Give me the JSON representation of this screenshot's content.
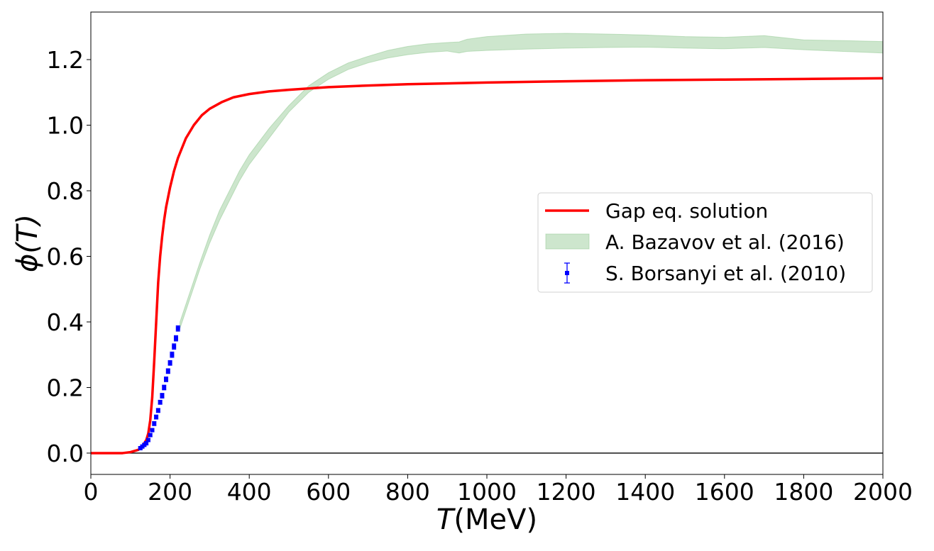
{
  "chart_data": {
    "type": "line",
    "xlabel": "T(MeV)",
    "xlabel_italic_part": "T",
    "xlabel_unit_part": "(MeV)",
    "ylabel": "ϕ(T)",
    "xlim": [
      0,
      2000
    ],
    "ylim": [
      -0.065,
      1.345
    ],
    "x_ticks": [
      0,
      200,
      400,
      600,
      800,
      1000,
      1200,
      1400,
      1600,
      1800,
      2000
    ],
    "x_tick_labels": [
      "0",
      "200",
      "400",
      "600",
      "800",
      "1000",
      "1200",
      "1400",
      "1600",
      "1800",
      "2000"
    ],
    "y_ticks": [
      0.0,
      0.2,
      0.4,
      0.6,
      0.8,
      1.0,
      1.2
    ],
    "y_tick_labels": [
      "0.0",
      "0.2",
      "0.4",
      "0.6",
      "0.8",
      "1.0",
      "1.2"
    ],
    "grid": false,
    "zero_line": 0,
    "legend_position": "center-right",
    "series": [
      {
        "name": "Gap eq. solution",
        "kind": "line",
        "color": "#ff0000",
        "x": [
          0,
          80,
          100,
          120,
          130,
          140,
          145,
          150,
          155,
          160,
          165,
          170,
          175,
          180,
          185,
          190,
          200,
          210,
          220,
          230,
          240,
          260,
          280,
          300,
          330,
          360,
          400,
          450,
          500,
          600,
          700,
          800,
          1000,
          1200,
          1400,
          1600,
          1800,
          2000
        ],
        "y": [
          0.0,
          0.0,
          0.003,
          0.01,
          0.02,
          0.04,
          0.06,
          0.1,
          0.17,
          0.28,
          0.4,
          0.52,
          0.6,
          0.66,
          0.71,
          0.75,
          0.81,
          0.86,
          0.9,
          0.93,
          0.96,
          1.0,
          1.03,
          1.05,
          1.07,
          1.085,
          1.095,
          1.103,
          1.108,
          1.116,
          1.121,
          1.125,
          1.13,
          1.134,
          1.137,
          1.139,
          1.141,
          1.143
        ]
      },
      {
        "name": "A. Bazavov et al. (2016)",
        "kind": "band",
        "color": "#90c890",
        "x": [
          225,
          250,
          275,
          300,
          325,
          350,
          375,
          400,
          450,
          500,
          550,
          600,
          650,
          700,
          750,
          800,
          850,
          900,
          930,
          950,
          1000,
          1100,
          1200,
          1300,
          1400,
          1500,
          1600,
          1700,
          1800,
          1900,
          2000
        ],
        "y_low": [
          0.38,
          0.47,
          0.56,
          0.64,
          0.71,
          0.77,
          0.83,
          0.88,
          0.96,
          1.04,
          1.1,
          1.14,
          1.17,
          1.19,
          1.205,
          1.215,
          1.222,
          1.226,
          1.22,
          1.225,
          1.228,
          1.232,
          1.235,
          1.237,
          1.238,
          1.235,
          1.233,
          1.237,
          1.23,
          1.225,
          1.22
        ],
        "y_high": [
          0.4,
          0.49,
          0.58,
          0.665,
          0.74,
          0.8,
          0.86,
          0.91,
          0.99,
          1.06,
          1.12,
          1.16,
          1.19,
          1.21,
          1.228,
          1.24,
          1.248,
          1.252,
          1.254,
          1.262,
          1.27,
          1.278,
          1.28,
          1.278,
          1.275,
          1.27,
          1.268,
          1.273,
          1.26,
          1.258,
          1.255
        ]
      },
      {
        "name": "S. Borsanyi et al. (2010)",
        "kind": "errorbar",
        "color": "#0000ff",
        "x": [
          125,
          130,
          135,
          140,
          145,
          150,
          155,
          160,
          165,
          170,
          175,
          180,
          185,
          190,
          195,
          200,
          205,
          210,
          215,
          220
        ],
        "y": [
          0.015,
          0.02,
          0.025,
          0.03,
          0.04,
          0.055,
          0.07,
          0.09,
          0.11,
          0.13,
          0.155,
          0.175,
          0.2,
          0.225,
          0.25,
          0.275,
          0.3,
          0.325,
          0.35,
          0.38
        ],
        "err": [
          0.004,
          0.004,
          0.004,
          0.005,
          0.005,
          0.005,
          0.005,
          0.006,
          0.006,
          0.006,
          0.006,
          0.007,
          0.007,
          0.007,
          0.007,
          0.007,
          0.008,
          0.008,
          0.008,
          0.008
        ]
      }
    ]
  }
}
